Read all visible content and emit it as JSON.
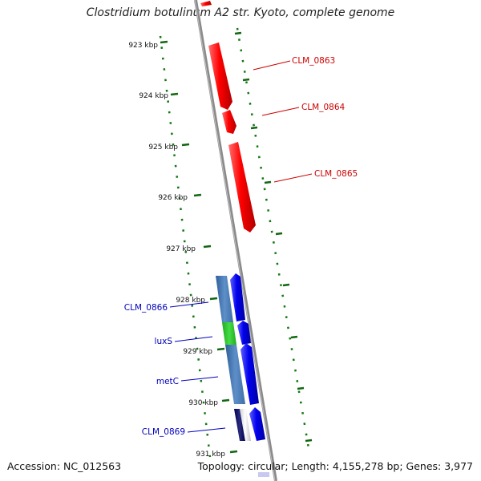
{
  "title": "Clostridium botulinum A2 str. Kyoto, complete genome",
  "footer": {
    "accession": "Accession: NC_012563",
    "summary": "Topology: circular; Length: 4,155,278 bp; Genes: 3,977"
  },
  "ticks": [
    "923 kbp",
    "924 kbp",
    "925 kbp",
    "926 kbp",
    "927 kbp",
    "928 kbp",
    "929 kbp",
    "930 kbp",
    "931 kbp"
  ],
  "labels": {
    "right": [
      "CLM_0863",
      "CLM_0864",
      "CLM_0865"
    ],
    "left": [
      "CLM_0866",
      "luxS",
      "metC",
      "CLM_0869"
    ]
  },
  "colors": {
    "forward_gene": "#ff0000",
    "reverse_gene": "#0000ee",
    "right_label": "#cc0000",
    "left_label": "#0000bb",
    "backbone": "#888888",
    "tick": "#116611",
    "track_steelblue": "#4f7fb8",
    "track_green": "#33cc33",
    "track_navy": "#000066"
  }
}
